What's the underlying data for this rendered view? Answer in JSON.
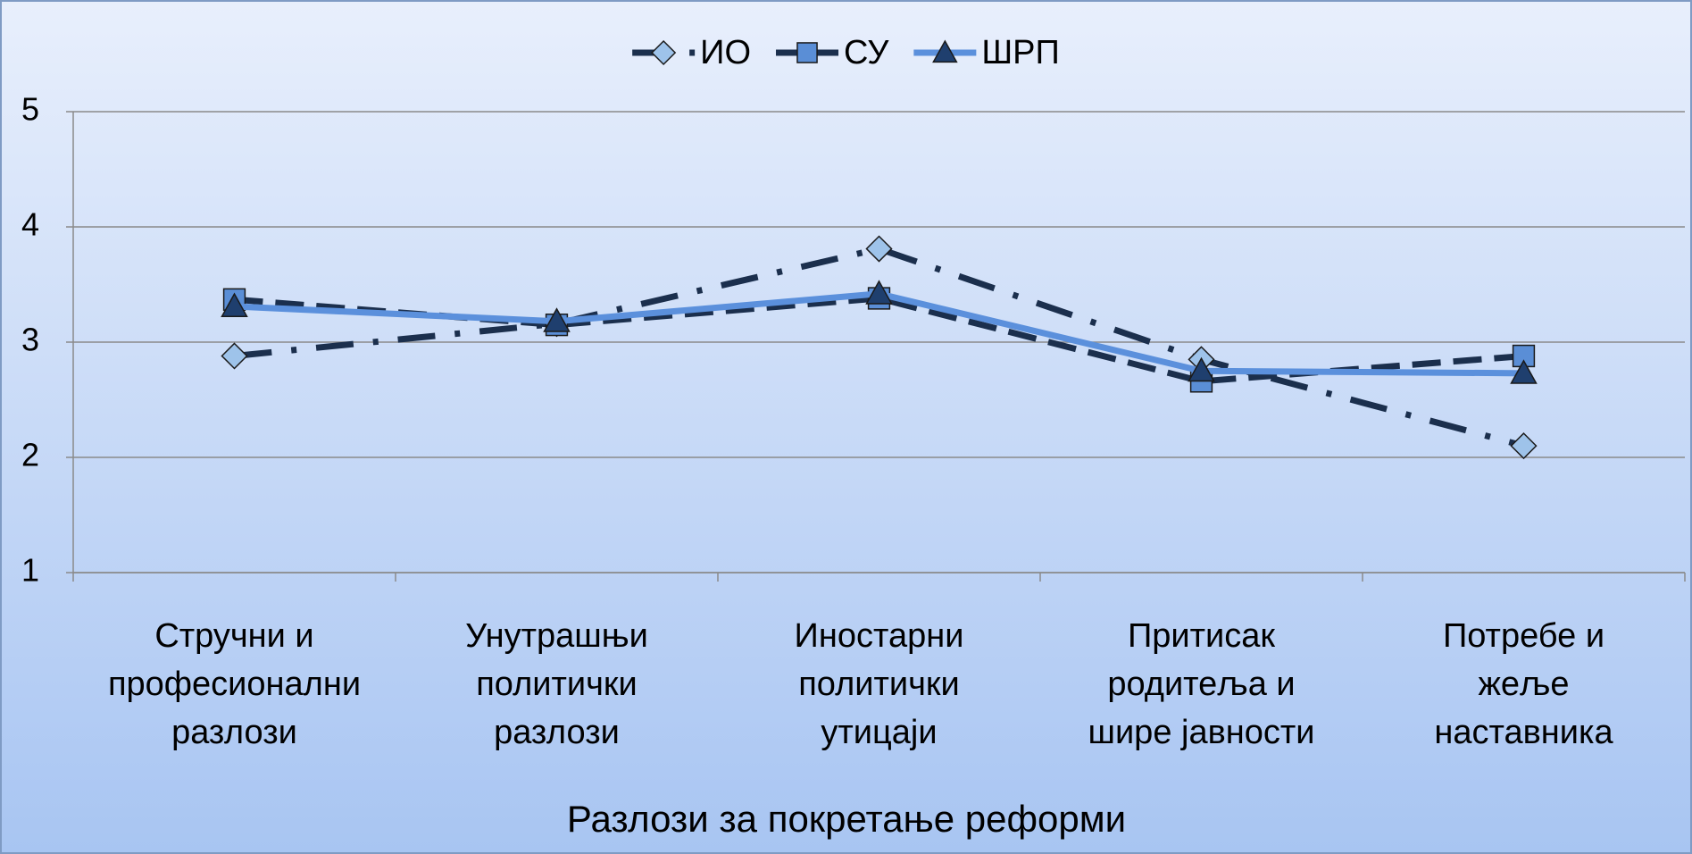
{
  "chart_data": {
    "type": "line",
    "x_label": "Разлози за покретање реформи",
    "categories": [
      "Стручни и\nпрофесионални\nразлози",
      "Унутрашњи\nполитички\nразлози",
      "Иностарни\nполитички\nутицаји",
      "Притисак\nродитеља и\nшире јавности",
      "Потребе и\nжеље\nнаставника"
    ],
    "series": [
      {
        "name": "ИО",
        "color": "#1b2f4d",
        "marker_color": "#9ec3ea",
        "line_style": "dash-dot",
        "marker": "diamond",
        "values": [
          2.88,
          3.16,
          3.81,
          2.85,
          2.1
        ]
      },
      {
        "name": "СУ",
        "color": "#1b2f4d",
        "marker_color": "#5a8ed6",
        "line_style": "dashed",
        "marker": "square",
        "values": [
          3.37,
          3.15,
          3.38,
          2.66,
          2.88
        ]
      },
      {
        "name": "ШРП",
        "color": "#5b90dc",
        "marker_color": "#1f3f6e",
        "line_style": "solid",
        "marker": "triangle",
        "values": [
          3.31,
          3.18,
          3.42,
          2.75,
          2.73
        ]
      }
    ],
    "ylim": [
      1,
      5
    ],
    "yticks": [
      1,
      2,
      3,
      4,
      5
    ],
    "grid": true,
    "legend": "top"
  }
}
